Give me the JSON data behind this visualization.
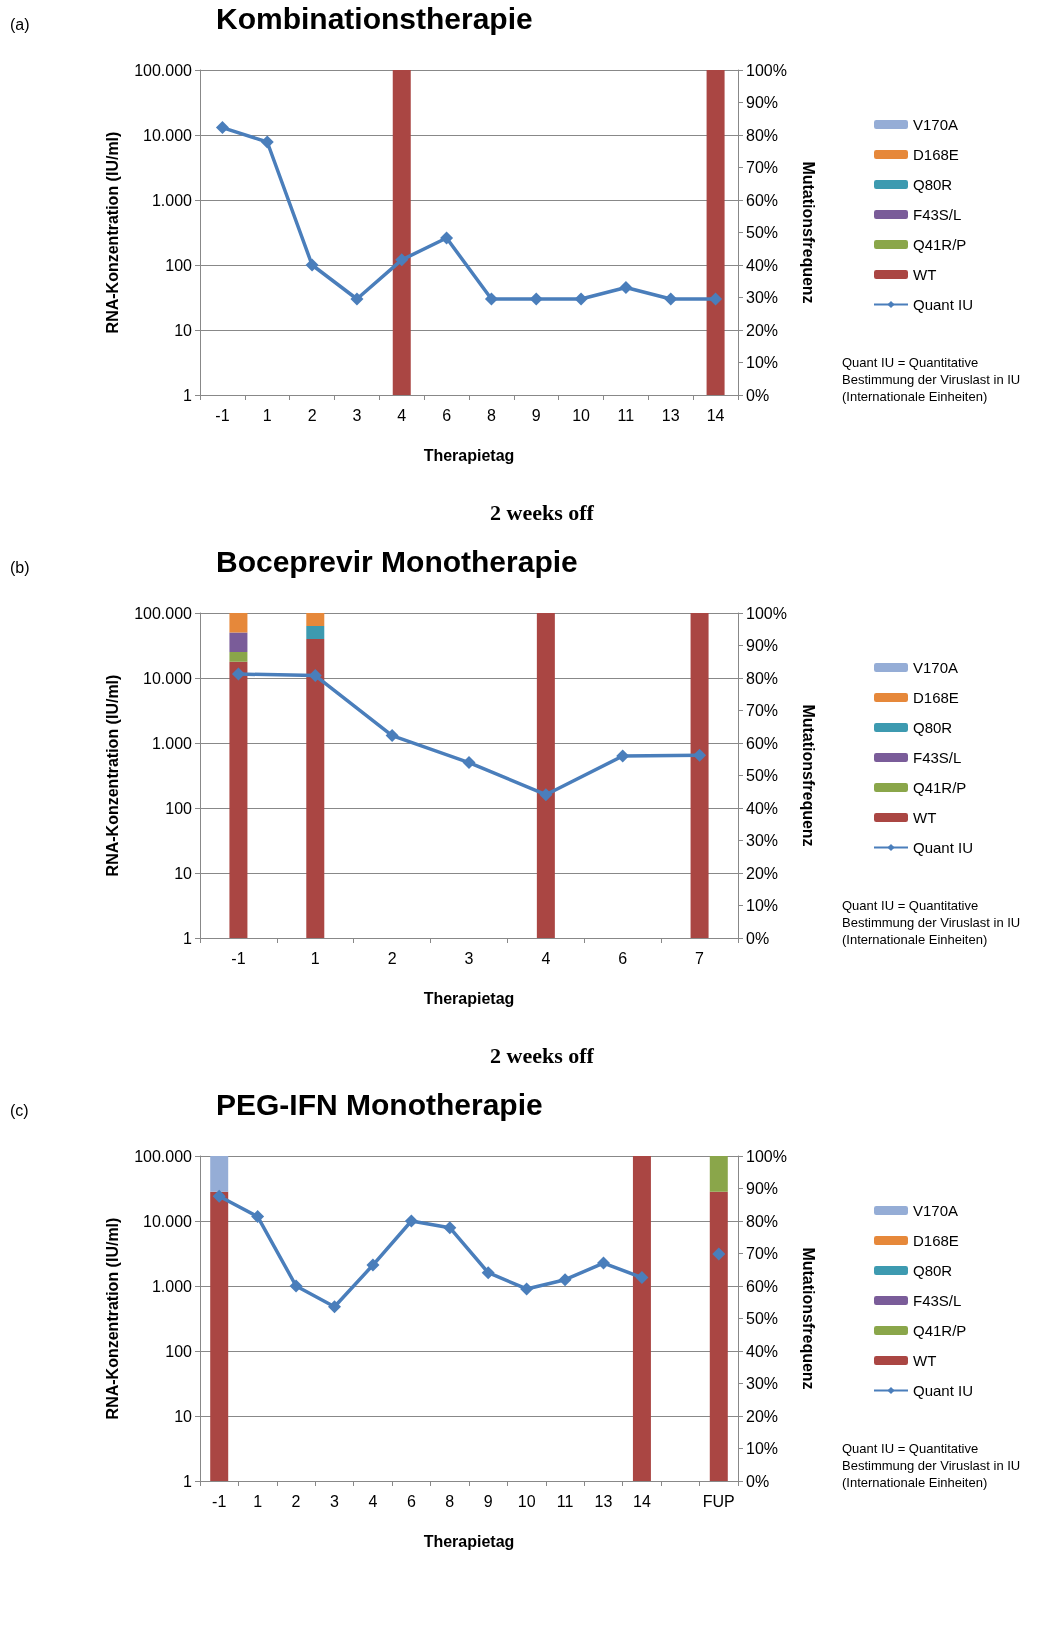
{
  "chart_data": [
    {
      "type": "bar",
      "title": "Kombinationstherapie",
      "xlabel": "Therapietag",
      "ylabel": "RNA-Konzentration (IU/ml)",
      "y2label": "Mutationsfrequenz",
      "annotations": [
        "(a)",
        "Quant IU = Quantitative Bestimmung der Viruslast in IU (Internationale Einheiten)",
        "2 weeks off"
      ],
      "categories": [
        "-1",
        "1",
        "2",
        "3",
        "4",
        "6",
        "8",
        "9",
        "10",
        "11",
        "13",
        "14"
      ],
      "stacked": true,
      "log": "y",
      "grid": "y",
      "legend": "right",
      "ylim": [
        1,
        100000
      ],
      "yticks": [
        {
          "value": 1,
          "label": "1"
        },
        {
          "value": 10,
          "label": "10"
        },
        {
          "value": 100,
          "label": "100"
        },
        {
          "value": 1000,
          "label": "1.000"
        },
        {
          "value": 10000,
          "label": "10.000"
        },
        {
          "value": 100000,
          "label": "100.000"
        }
      ],
      "y2lim": [
        0,
        100
      ],
      "y2ticks": [
        {
          "value": 0,
          "label": "0%"
        },
        {
          "value": 10,
          "label": "10%"
        },
        {
          "value": 20,
          "label": "20%"
        },
        {
          "value": 30,
          "label": "30%"
        },
        {
          "value": 40,
          "label": "40%"
        },
        {
          "value": 50,
          "label": "50%"
        },
        {
          "value": 60,
          "label": "60%"
        },
        {
          "value": 70,
          "label": "70%"
        },
        {
          "value": 80,
          "label": "80%"
        },
        {
          "value": 90,
          "label": "90%"
        },
        {
          "value": 100,
          "label": "100%"
        }
      ],
      "series": [
        {
          "name": "WT",
          "axis": "y2",
          "color": "#aa4643",
          "values": [
            null,
            null,
            null,
            null,
            100,
            null,
            null,
            null,
            null,
            null,
            null,
            100
          ]
        },
        {
          "name": "Q41R/P",
          "axis": "y2",
          "color": "#8aa64a",
          "values": [
            null,
            null,
            null,
            null,
            null,
            null,
            null,
            null,
            null,
            null,
            null,
            null
          ]
        },
        {
          "name": "F43S/L",
          "axis": "y2",
          "color": "#7a5c99",
          "values": [
            null,
            null,
            null,
            null,
            null,
            null,
            null,
            null,
            null,
            null,
            null,
            null
          ]
        },
        {
          "name": "Q80R",
          "axis": "y2",
          "color": "#3d9ab0",
          "values": [
            null,
            null,
            null,
            null,
            null,
            null,
            null,
            null,
            null,
            null,
            null,
            null
          ]
        },
        {
          "name": "D168E",
          "axis": "y2",
          "color": "#e6883a",
          "values": [
            null,
            null,
            null,
            null,
            null,
            null,
            null,
            null,
            null,
            null,
            null,
            null
          ]
        },
        {
          "name": "V170A",
          "axis": "y2",
          "color": "#95add6",
          "values": [
            null,
            null,
            null,
            null,
            null,
            null,
            null,
            null,
            null,
            null,
            null,
            null
          ]
        },
        {
          "name": "Quant IU",
          "type": "line",
          "axis": "y",
          "color": "#4a7ebb",
          "marker": "diamond",
          "values": [
            13000,
            7800,
            100,
            30,
            120,
            260,
            30,
            30,
            30,
            45,
            30,
            30
          ]
        }
      ]
    },
    {
      "type": "bar",
      "title": "Boceprevir Monotherapie",
      "xlabel": "Therapietag",
      "ylabel": "RNA-Konzentration (IU/ml)",
      "y2label": "Mutationsfrequenz",
      "annotations": [
        "(b)",
        "Quant IU = Quantitative Bestimmung der Viruslast in IU (Internationale Einheiten)",
        "2 weeks off"
      ],
      "categories": [
        "-1",
        "1",
        "2",
        "3",
        "4",
        "6",
        "7"
      ],
      "stacked": true,
      "log": "y",
      "grid": "y",
      "legend": "right",
      "ylim": [
        1,
        100000
      ],
      "yticks": [
        {
          "value": 1,
          "label": "1"
        },
        {
          "value": 10,
          "label": "10"
        },
        {
          "value": 100,
          "label": "100"
        },
        {
          "value": 1000,
          "label": "1.000"
        },
        {
          "value": 10000,
          "label": "10.000"
        },
        {
          "value": 100000,
          "label": "100.000"
        }
      ],
      "y2lim": [
        0,
        100
      ],
      "y2ticks": [
        {
          "value": 0,
          "label": "0%"
        },
        {
          "value": 10,
          "label": "10%"
        },
        {
          "value": 20,
          "label": "20%"
        },
        {
          "value": 30,
          "label": "30%"
        },
        {
          "value": 40,
          "label": "40%"
        },
        {
          "value": 50,
          "label": "50%"
        },
        {
          "value": 60,
          "label": "60%"
        },
        {
          "value": 70,
          "label": "70%"
        },
        {
          "value": 80,
          "label": "80%"
        },
        {
          "value": 90,
          "label": "90%"
        },
        {
          "value": 100,
          "label": "100%"
        }
      ],
      "series": [
        {
          "name": "WT",
          "axis": "y2",
          "color": "#aa4643",
          "values": [
            85,
            92,
            null,
            null,
            100,
            null,
            100
          ]
        },
        {
          "name": "Q41R/P",
          "axis": "y2",
          "color": "#8aa64a",
          "values": [
            3,
            null,
            null,
            null,
            null,
            null,
            null
          ]
        },
        {
          "name": "F43S/L",
          "axis": "y2",
          "color": "#7a5c99",
          "values": [
            6,
            null,
            null,
            null,
            null,
            null,
            null
          ]
        },
        {
          "name": "Q80R",
          "axis": "y2",
          "color": "#3d9ab0",
          "values": [
            null,
            4,
            null,
            null,
            null,
            null,
            null
          ]
        },
        {
          "name": "D168E",
          "axis": "y2",
          "color": "#e6883a",
          "values": [
            6,
            4,
            null,
            null,
            null,
            null,
            null
          ]
        },
        {
          "name": "V170A",
          "axis": "y2",
          "color": "#95add6",
          "values": [
            null,
            null,
            null,
            null,
            null,
            null,
            null
          ]
        },
        {
          "name": "Quant IU",
          "type": "line",
          "axis": "y",
          "color": "#4a7ebb",
          "marker": "diamond",
          "values": [
            11500,
            10900,
            1300,
            500,
            160,
            630,
            650
          ]
        }
      ]
    },
    {
      "type": "bar",
      "title": "PEG-IFN Monotherapie",
      "xlabel": "Therapietag",
      "ylabel": "RNA-Konzentration (IU/ml)",
      "y2label": "Mutationsfrequenz",
      "annotations": [
        "(c)",
        "Quant IU = Quantitative Bestimmung der Viruslast in IU (Internationale Einheiten)"
      ],
      "categories": [
        "-1",
        "1",
        "2",
        "3",
        "4",
        "6",
        "8",
        "9",
        "10",
        "11",
        "13",
        "14",
        null,
        "FUP"
      ],
      "stacked": true,
      "log": "y",
      "grid": "y",
      "legend": "right",
      "ylim": [
        1,
        100000
      ],
      "yticks": [
        {
          "value": 1,
          "label": "1"
        },
        {
          "value": 10,
          "label": "10"
        },
        {
          "value": 100,
          "label": "100"
        },
        {
          "value": 1000,
          "label": "1.000"
        },
        {
          "value": 10000,
          "label": "10.000"
        },
        {
          "value": 100000,
          "label": "100.000"
        }
      ],
      "y2lim": [
        0,
        100
      ],
      "y2ticks": [
        {
          "value": 0,
          "label": "0%"
        },
        {
          "value": 10,
          "label": "10%"
        },
        {
          "value": 20,
          "label": "20%"
        },
        {
          "value": 30,
          "label": "30%"
        },
        {
          "value": 40,
          "label": "40%"
        },
        {
          "value": 50,
          "label": "50%"
        },
        {
          "value": 60,
          "label": "60%"
        },
        {
          "value": 70,
          "label": "70%"
        },
        {
          "value": 80,
          "label": "80%"
        },
        {
          "value": 90,
          "label": "90%"
        },
        {
          "value": 100,
          "label": "100%"
        }
      ],
      "series": [
        {
          "name": "WT",
          "axis": "y2",
          "color": "#aa4643",
          "values": [
            89,
            null,
            null,
            null,
            null,
            null,
            null,
            null,
            null,
            null,
            null,
            100,
            null,
            89
          ]
        },
        {
          "name": "Q41R/P",
          "axis": "y2",
          "color": "#8aa64a",
          "values": [
            null,
            null,
            null,
            null,
            null,
            null,
            null,
            null,
            null,
            null,
            null,
            null,
            null,
            11
          ]
        },
        {
          "name": "F43S/L",
          "axis": "y2",
          "color": "#7a5c99",
          "values": [
            null,
            null,
            null,
            null,
            null,
            null,
            null,
            null,
            null,
            null,
            null,
            null,
            null,
            null
          ]
        },
        {
          "name": "Q80R",
          "axis": "y2",
          "color": "#3d9ab0",
          "values": [
            null,
            null,
            null,
            null,
            null,
            null,
            null,
            null,
            null,
            null,
            null,
            null,
            null,
            null
          ]
        },
        {
          "name": "D168E",
          "axis": "y2",
          "color": "#e6883a",
          "values": [
            null,
            null,
            null,
            null,
            null,
            null,
            null,
            null,
            null,
            null,
            null,
            null,
            null,
            null
          ]
        },
        {
          "name": "V170A",
          "axis": "y2",
          "color": "#95add6",
          "values": [
            11,
            null,
            null,
            null,
            null,
            null,
            null,
            null,
            null,
            null,
            null,
            null,
            null,
            null
          ]
        },
        {
          "name": "Quant IU",
          "type": "line",
          "axis": "y",
          "color": "#4a7ebb",
          "marker": "diamond",
          "values": [
            24000,
            11700,
            1000,
            480,
            2100,
            10000,
            7900,
            1600,
            900,
            1250,
            2250,
            1350,
            null,
            3100
          ]
        }
      ]
    }
  ]
}
